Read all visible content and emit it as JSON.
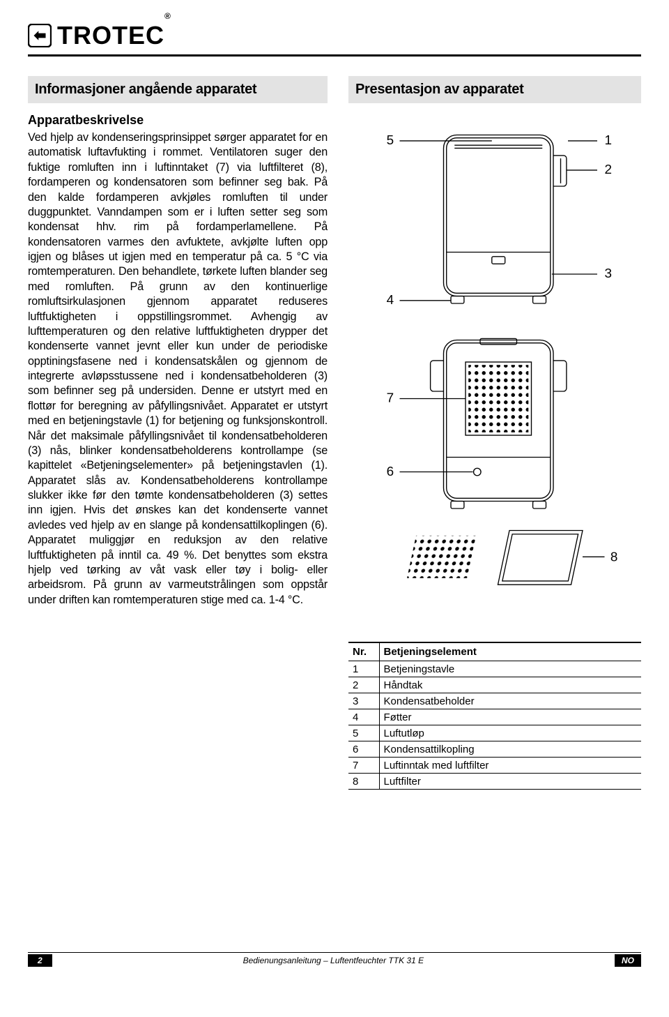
{
  "brand": "TROTEC",
  "section_left_title": "Informasjoner angående apparatet",
  "subtitle_left": "Apparatbeskrivelse",
  "body_left": "Ved hjelp av kondenseringsprinsippet sørger apparatet for en automatisk luftavfukting i rommet. Ventilatoren suger den fuktige romluften inn i luftinntaket (7) via luftfilteret (8), fordamperen og kondensatoren som befinner seg bak. På den kalde fordamperen avkjøles romluften til under duggpunktet. Vanndampen som er i luften setter seg som kondensat hhv. rim på fordamperlamellene. På kondensatoren varmes den avfuktete, avkjølte luften opp igjen og blåses ut igjen med en temperatur på ca. 5 °C via romtemperaturen. Den behandlete, tørkete luften blander seg med romluften. På grunn av den kontinuerlige romluftsirkulasjonen gjennom apparatet reduseres luftfuktigheten i oppstillingsrommet. Avhengig av lufttemperaturen og den relative luftfuktigheten drypper det kondenserte vannet jevnt eller kun under de periodiske opptiningsfasene ned i kondensatskålen og gjennom de integrerte avløpsstussene ned i kondensatbeholderen (3) som befinner seg på undersiden. Denne er utstyrt med en flottør for beregning av påfyllingsnivået. Apparatet er utstyrt med en betjeningstavle (1) for betjening og funksjonskontroll. Når det maksimale påfyllingsnivået til kondensatbeholderen (3) nås, blinker kondensatbeholderens kontrollampe (se kapittelet «Betjeningselementer» på betjeningstavlen (1). Apparatet slås av. Kondensatbeholderens kontrollampe slukker ikke før den tømte kondensatbeholderen (3) settes inn igjen. Hvis det ønskes kan det kondenserte vannet avledes ved hjelp av en slange på kondensattilkoplingen (6). Apparatet muliggjør en reduksjon av den relative luftfuktigheten på inntil ca. 49 %. Det benyttes som ekstra hjelp ved tørking av våt vask eller tøy i bolig- eller arbeidsrom. På grunn av varmeutstrålingen som oppstår under driften kan romtemperaturen stige med ca. 1-4 °C.",
  "section_right_title": "Presentasjon av apparatet",
  "table": {
    "head_nr": "Nr.",
    "head_name": "Betjeningselement",
    "rows": [
      {
        "nr": "1",
        "name": "Betjeningstavle"
      },
      {
        "nr": "2",
        "name": "Håndtak"
      },
      {
        "nr": "3",
        "name": "Kondensatbeholder"
      },
      {
        "nr": "4",
        "name": "Føtter"
      },
      {
        "nr": "5",
        "name": "Luftutløp"
      },
      {
        "nr": "6",
        "name": "Kondensattilkopling"
      },
      {
        "nr": "7",
        "name": "Luftinntak med luftfilter"
      },
      {
        "nr": "8",
        "name": "Luftfilter"
      }
    ]
  },
  "footer": {
    "page": "2",
    "text": "Bedienungsanleitung – Luftentfeuchter TTK 31 E",
    "lang": "NO"
  },
  "diagram_labels": [
    "1",
    "2",
    "3",
    "4",
    "5",
    "6",
    "7",
    "8"
  ],
  "colors": {
    "section_bg": "#e3e3e3",
    "line": "#000000",
    "bg": "#ffffff"
  }
}
